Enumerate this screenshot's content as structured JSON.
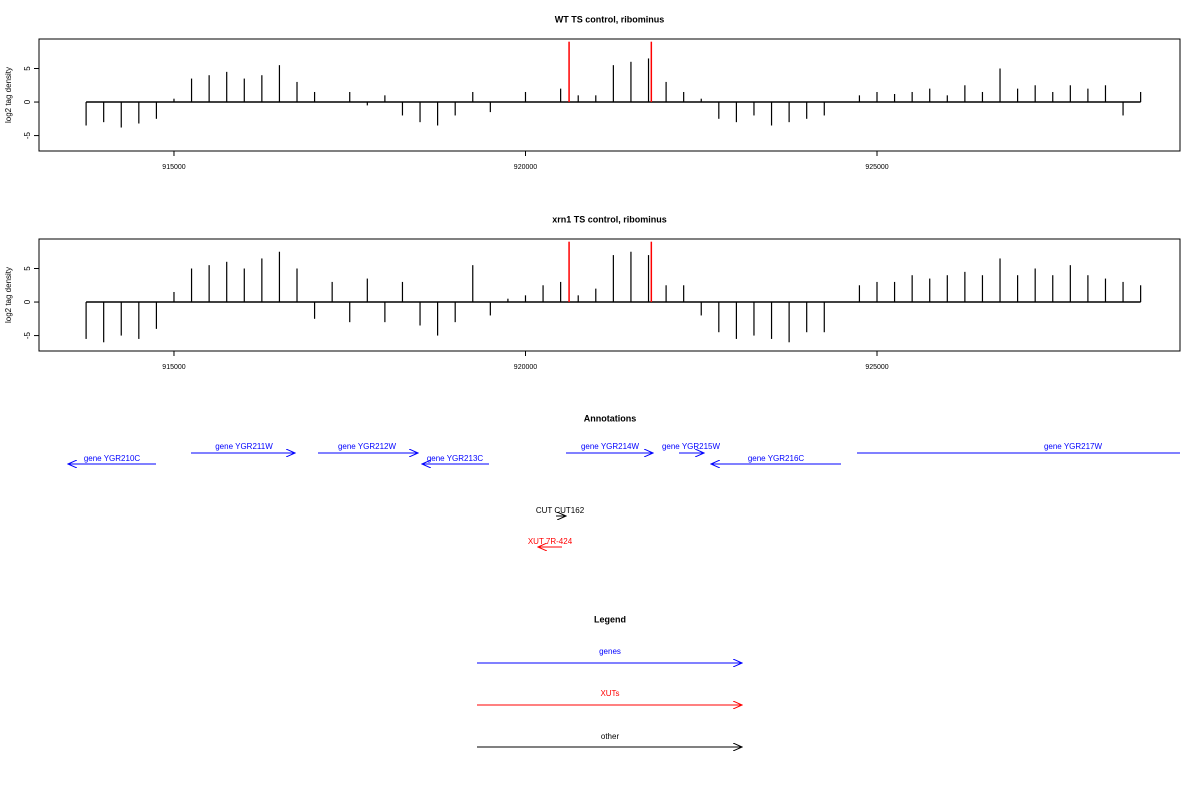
{
  "chart_data": [
    {
      "type": "bar",
      "title": "WT TS control, ribominus",
      "y_label": "log2 tag density",
      "xlim": [
        913080,
        929310
      ],
      "xticks": [
        915000,
        920000,
        925000
      ],
      "ylim": [
        -7.3,
        9.4
      ],
      "yticks": [
        -5,
        0,
        5
      ],
      "series": [
        {
          "color": "#000000",
          "x": [
            913750,
            914000,
            914250,
            914500,
            914750,
            915000,
            915250,
            915500,
            915750,
            916000,
            916250,
            916500,
            916750,
            917000,
            917250,
            917500,
            917750,
            918000,
            918250,
            918500,
            918750,
            919000,
            919250,
            919500,
            919750,
            920000,
            920250,
            920500,
            920750,
            921000,
            921250,
            921500,
            921750,
            922000,
            922250,
            922500,
            922750,
            923000,
            923250,
            923500,
            923750,
            924000,
            924250,
            924500,
            924750,
            925000,
            925250,
            925500,
            925750,
            926000,
            926250,
            926500,
            926750,
            927000,
            927250,
            927500,
            927750,
            928000,
            928250,
            928500,
            928750
          ],
          "values": [
            -3.5,
            -3,
            -3.8,
            -3.2,
            -2.5,
            0.5,
            3.5,
            4,
            4.5,
            3.5,
            4,
            5.5,
            3,
            1.5,
            0,
            1.5,
            -0.5,
            1,
            -2,
            -3,
            -3.5,
            -2,
            1.5,
            -1.5,
            0,
            1.5,
            0,
            2,
            1,
            1,
            5.5,
            6,
            6.5,
            3,
            1.5,
            0.5,
            -2.5,
            -3,
            -2,
            -3.5,
            -3,
            -2.5,
            -2,
            0,
            1,
            1.5,
            1.2,
            1.5,
            2,
            1,
            2.5,
            1.5,
            5,
            2,
            2.5,
            1.5,
            2.5,
            2,
            2.5,
            -2,
            1.5
          ]
        },
        {
          "color": "#ff0000",
          "x": [
            920620,
            921790
          ],
          "values": [
            9,
            9
          ]
        }
      ]
    },
    {
      "type": "bar",
      "title": "xrn1 TS control, ribominus",
      "y_label": "log2 tag density",
      "xlim": [
        913080,
        929310
      ],
      "xticks": [
        915000,
        920000,
        925000
      ],
      "ylim": [
        -7.3,
        9.4
      ],
      "yticks": [
        -5,
        0,
        5
      ],
      "series": [
        {
          "color": "#000000",
          "x": [
            913750,
            914000,
            914250,
            914500,
            914750,
            915000,
            915250,
            915500,
            915750,
            916000,
            916250,
            916500,
            916750,
            917000,
            917250,
            917500,
            917750,
            918000,
            918250,
            918500,
            918750,
            919000,
            919250,
            919500,
            919750,
            920000,
            920250,
            920500,
            920750,
            921000,
            921250,
            921500,
            921750,
            922000,
            922250,
            922500,
            922750,
            923000,
            923250,
            923500,
            923750,
            924000,
            924250,
            924500,
            924750,
            925000,
            925250,
            925500,
            925750,
            926000,
            926250,
            926500,
            926750,
            927000,
            927250,
            927500,
            927750,
            928000,
            928250,
            928500,
            928750
          ],
          "values": [
            -5.5,
            -6,
            -5,
            -5.5,
            -4,
            1.5,
            5,
            5.5,
            6,
            5,
            6.5,
            7.5,
            5,
            -2.5,
            3,
            -3,
            3.5,
            -3,
            3,
            -3.5,
            -5,
            -3,
            5.5,
            -2,
            0.5,
            1,
            2.5,
            3,
            1,
            2,
            7,
            7.5,
            7,
            2.5,
            2.5,
            -2,
            -4.5,
            -5.5,
            -5,
            -5.5,
            -6,
            -4.5,
            -4.5,
            0,
            2.5,
            3,
            3,
            4,
            3.5,
            4,
            4.5,
            4,
            6.5,
            4,
            5,
            4,
            5.5,
            4,
            3.5,
            3,
            2.5
          ]
        },
        {
          "color": "#ff0000",
          "x": [
            920620,
            921790
          ],
          "values": [
            9,
            9
          ]
        }
      ]
    }
  ],
  "annotations": {
    "title": "Annotations",
    "features": [
      "gene YGR210C",
      "gene YGR211W",
      "gene YGR212W",
      "gene YGR213C",
      "gene YGR214W",
      "gene YGR215W",
      "gene YGR216C",
      "gene YGR217W",
      "CUT CUT162",
      "XUT 7R-424"
    ]
  },
  "legend": {
    "title": "Legend",
    "entries": [
      "genes",
      "XUTs",
      "other"
    ]
  }
}
